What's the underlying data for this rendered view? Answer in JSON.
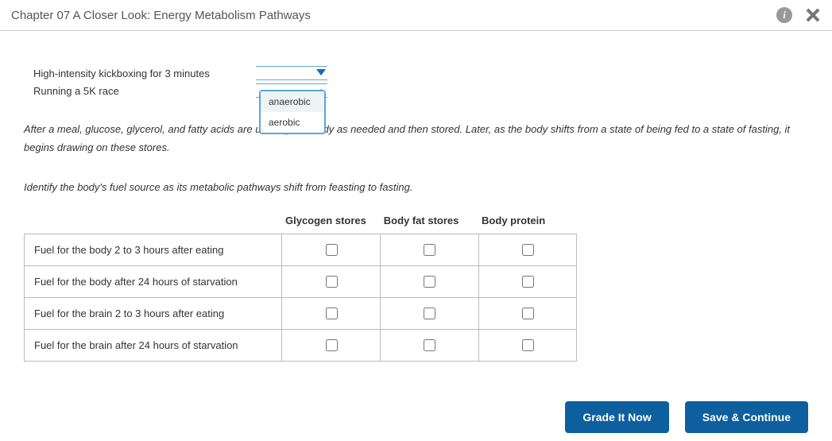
{
  "header": {
    "title": "Chapter 07 A Closer Look: Energy Metabolism Pathways"
  },
  "activities": [
    {
      "label": "High-intensity kickboxing for 3 minutes"
    },
    {
      "label": "Running a 5K race"
    }
  ],
  "dropdown": {
    "options": [
      "anaerobic",
      "aerobic"
    ],
    "selected_index": 0
  },
  "paragraph1": "After a meal, glucose, glycerol, and fatty acids are used by the body as needed and then stored. Later, as the body shifts from a state of being fed to a state of fasting, it begins drawing on these stores.",
  "paragraph2": "Identify the body's fuel source as its metabolic pathways shift from feasting to fasting.",
  "table": {
    "columns": [
      "Glycogen stores",
      "Body fat stores",
      "Body protein"
    ],
    "rows": [
      "Fuel for the body 2 to 3 hours after eating",
      "Fuel for the body after 24 hours of starvation",
      "Fuel for the brain 2 to 3 hours after eating",
      "Fuel for the brain after 24 hours of starvation"
    ]
  },
  "buttons": {
    "grade": "Grade It Now",
    "save": "Save & Continue"
  },
  "colors": {
    "primary": "#0d5f9e",
    "dropdown_border": "#5aa7d6"
  }
}
